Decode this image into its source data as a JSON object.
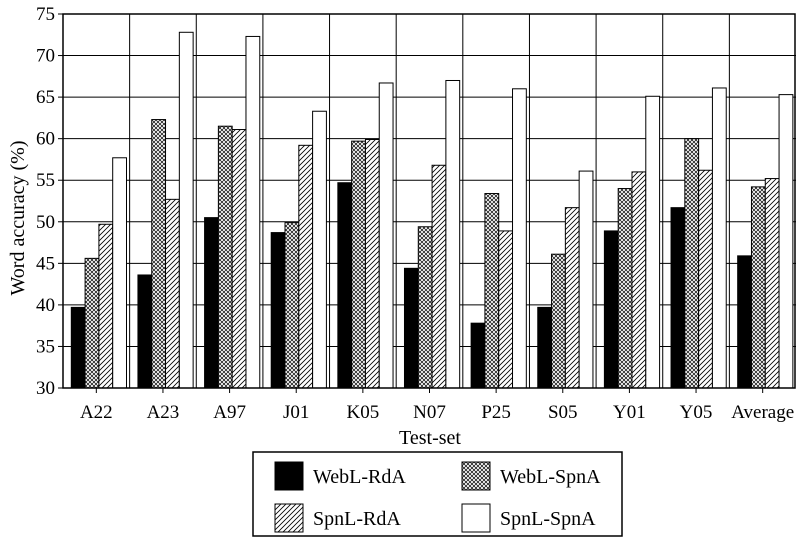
{
  "chart_data": {
    "type": "bar",
    "title": "",
    "xlabel": "Test-set",
    "ylabel": "Word accuracy (%)",
    "ylim": [
      30,
      75
    ],
    "yticks": [
      30,
      35,
      40,
      45,
      50,
      55,
      60,
      65,
      70,
      75
    ],
    "grid": true,
    "legend_placement": "bottom",
    "categories": [
      "A22",
      "A23",
      "A97",
      "J01",
      "K05",
      "N07",
      "P25",
      "S05",
      "Y01",
      "Y05",
      "Average"
    ],
    "series": [
      {
        "name": "WebL-RdA",
        "pattern": "solid-black",
        "values": [
          39.7,
          43.6,
          50.5,
          48.7,
          54.7,
          44.4,
          37.8,
          39.7,
          48.9,
          51.7,
          45.9
        ]
      },
      {
        "name": "WebL-SpnA",
        "pattern": "crosshatch-dense",
        "values": [
          45.6,
          62.3,
          61.5,
          49.9,
          59.7,
          49.4,
          53.4,
          46.1,
          54.0,
          60.0,
          54.2
        ]
      },
      {
        "name": "SpnL-RdA",
        "pattern": "diagonal-hatch",
        "values": [
          49.7,
          52.7,
          61.1,
          59.2,
          59.9,
          56.8,
          48.9,
          51.7,
          56.0,
          56.2,
          55.2
        ]
      },
      {
        "name": "SpnL-SpnA",
        "pattern": "white",
        "values": [
          57.7,
          72.8,
          72.3,
          63.3,
          66.7,
          67.0,
          66.0,
          56.1,
          65.1,
          66.1,
          65.3
        ]
      }
    ]
  },
  "colors": {
    "ink": "#000000",
    "background": "#ffffff"
  }
}
